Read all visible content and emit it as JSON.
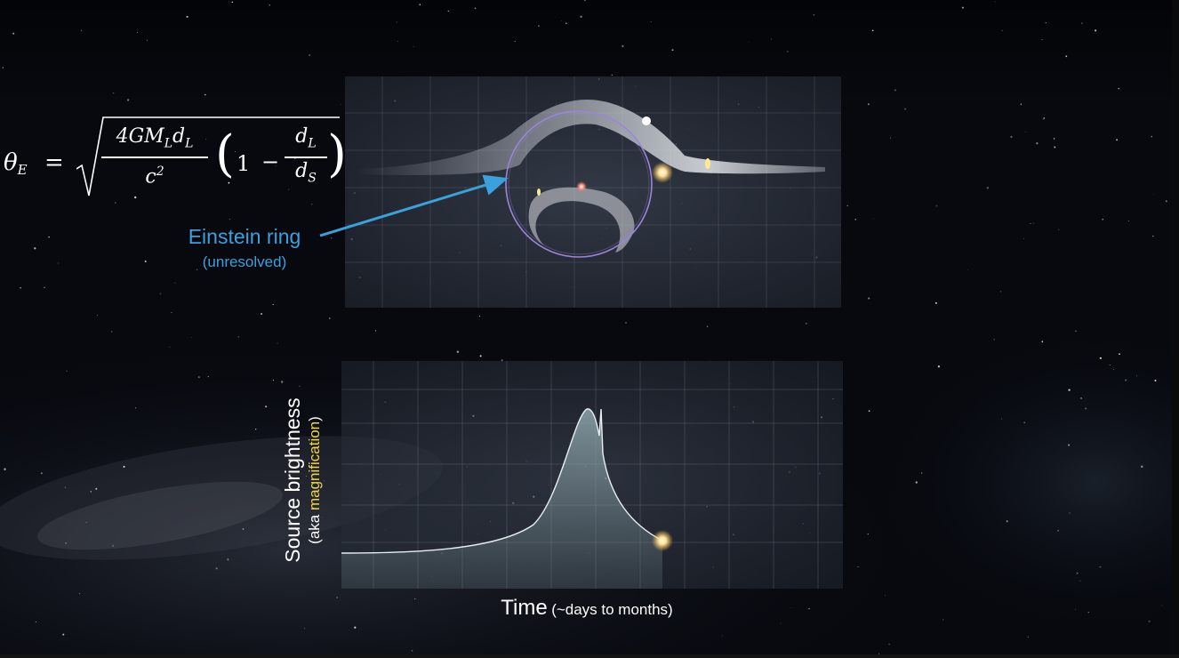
{
  "formula": {
    "lhs_symbol": "θ",
    "lhs_sub": "E",
    "equals": "=",
    "num_a": "4GM",
    "num_b": "L",
    "num_c": "d",
    "num_d": "L",
    "den": "c",
    "den_exp": "2",
    "one": "1",
    "minus": "−",
    "inner_num": "d",
    "inner_num_sub": "L",
    "inner_den": "d",
    "inner_den_sub": "S"
  },
  "annotation": {
    "label": "Einstein ring",
    "sublabel": "(unresolved)",
    "color": "#3aa1dd"
  },
  "light_curve": {
    "ylabel": "Source brightness",
    "ylabel_prefix": "(aka ",
    "ylabel_highlight": "magnification",
    "ylabel_suffix": ")",
    "highlight_color": "#f1d54a",
    "xlabel": "Time",
    "xlabel_note": "(~days to months)"
  },
  "colors": {
    "background": "#07090f",
    "ring": "#9a86d8",
    "lens": "#ff9a8a",
    "source": "#ffe9a8"
  }
}
